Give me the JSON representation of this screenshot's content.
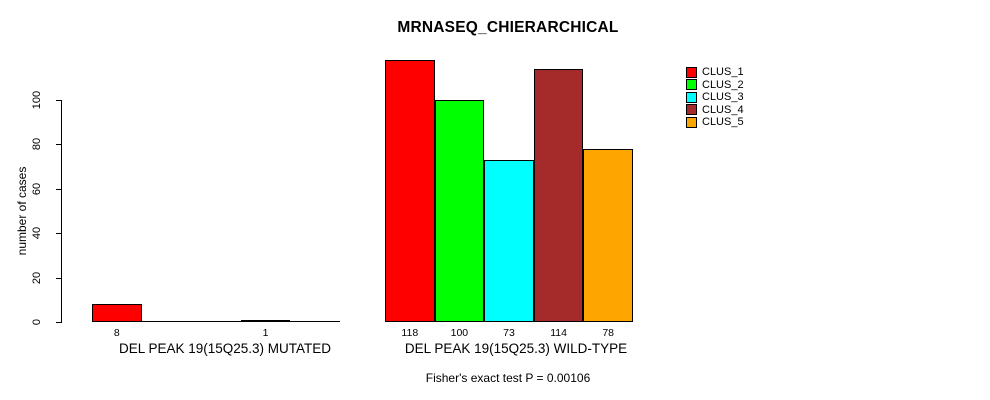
{
  "chart_data": {
    "type": "bar",
    "title": "MRNASEQ_CHIERARCHICAL",
    "ylabel": "number of cases",
    "xlabel": "",
    "yticks": [
      0,
      20,
      40,
      60,
      80,
      100
    ],
    "ylim": [
      0,
      120
    ],
    "grid": false,
    "legend_position": "top-right",
    "series": [
      {
        "name": "CLUS_1",
        "color": "#FF0000"
      },
      {
        "name": "CLUS_2",
        "color": "#00FF00"
      },
      {
        "name": "CLUS_3",
        "color": "#00FFFF"
      },
      {
        "name": "CLUS_4",
        "color": "#A52A2A"
      },
      {
        "name": "CLUS_5",
        "color": "#FFA500"
      }
    ],
    "categories": [
      "DEL PEAK 19(15Q25.3) MUTATED",
      "DEL PEAK 19(15Q25.3) WILD-TYPE"
    ],
    "groups": [
      {
        "label": "DEL PEAK 19(15Q25.3) MUTATED",
        "values": [
          8,
          0,
          0,
          1,
          0
        ],
        "bar_labels": [
          "8",
          "",
          "",
          "1",
          ""
        ]
      },
      {
        "label": "DEL PEAK 19(15Q25.3) WILD-TYPE",
        "values": [
          118,
          100,
          73,
          114,
          78
        ],
        "bar_labels": [
          "118",
          "100",
          "73",
          "114",
          "78"
        ]
      }
    ],
    "annotation": "Fisher's exact test P = 0.00106"
  }
}
